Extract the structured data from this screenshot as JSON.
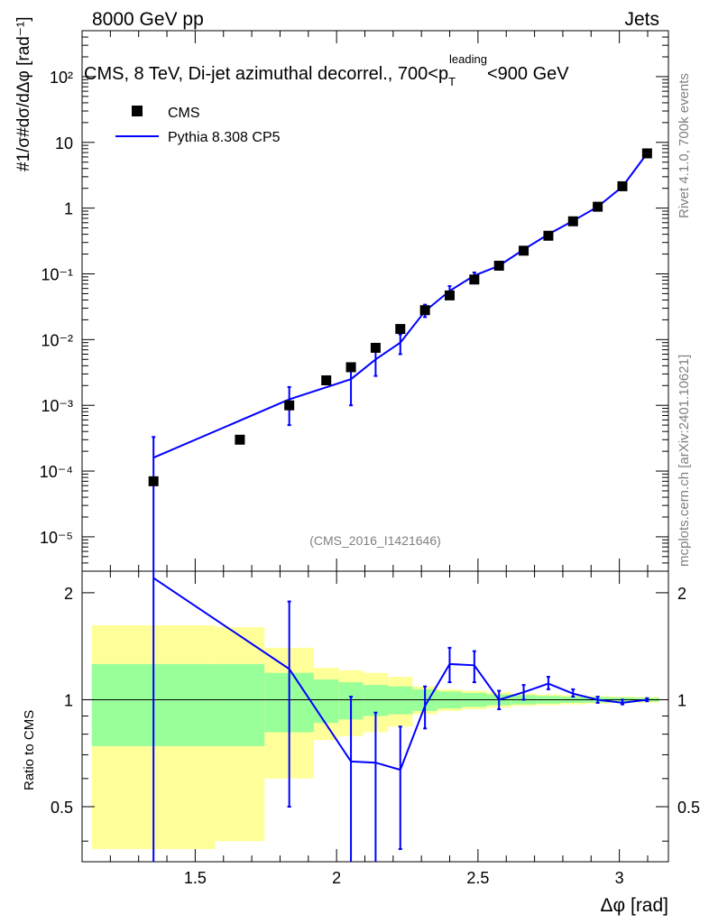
{
  "header": {
    "left": "8000 GeV pp",
    "right": "Jets"
  },
  "title": {
    "prefix": "CMS, 8 TeV, Di-jet azimuthal decorrel., 700<p",
    "sup": "leading",
    "sub": "T",
    "suffix": "<900 GeV"
  },
  "side": {
    "rivet": "Rivet 4.1.0,  700k events",
    "mcplots": "mcplots.cern.ch [arXiv:2401.10621]"
  },
  "watermark": "(CMS_2016_I1421646)",
  "legend": {
    "data_label": "CMS",
    "mc_label": "Pythia 8.308 CP5"
  },
  "axes": {
    "ylabel_top": "#1/σ#dσ/dΔφ [rad⁻¹]",
    "ylabel_ratio": "Ratio to CMS",
    "xlabel": "Δφ [rad]",
    "x_ticks": [
      "1.5",
      "2",
      "2.5",
      "3"
    ],
    "y_ticks_top": [
      "10⁻⁵",
      "10⁻⁴",
      "10⁻³",
      "10⁻²",
      "10⁻¹",
      "1",
      "10",
      "10²"
    ],
    "y_ticks_ratio": [
      "0.5",
      "1",
      "2"
    ]
  },
  "colors": {
    "mc": "#0000ff",
    "data": "#000000",
    "band_1sigma": "#99ff99",
    "band_2sigma": "#ffff99"
  },
  "chart_data": {
    "type": "scatter",
    "xlim": [
      1.1,
      3.1734
    ],
    "ylim_top": [
      3e-06,
      500
    ],
    "ylim_ratio": [
      0.35,
      2.3
    ],
    "x_edges": [
      1.1344,
      1.5708,
      1.7453,
      1.9199,
      2.0071,
      2.0944,
      2.1817,
      2.2689,
      2.3562,
      2.4435,
      2.5307,
      2.618,
      2.7053,
      2.7925,
      2.8798,
      2.9671,
      3.0543,
      3.1416
    ],
    "data": {
      "x": [
        1.3526,
        1.658,
        1.8326,
        1.9635,
        2.0508,
        2.138,
        2.2253,
        2.3126,
        2.3998,
        2.4871,
        2.5744,
        2.6616,
        2.7489,
        2.8362,
        2.9234,
        3.0107,
        3.098
      ],
      "y": [
        7e-05,
        0.0003,
        0.001,
        0.0024,
        0.0038,
        0.0075,
        0.0145,
        0.028,
        0.047,
        0.082,
        0.133,
        0.225,
        0.38,
        0.63,
        1.05,
        2.15,
        6.8
      ],
      "rel_err_1sigma": [
        0.26,
        0.26,
        0.19,
        0.14,
        0.12,
        0.1,
        0.09,
        0.07,
        0.055,
        0.045,
        0.035,
        0.03,
        0.025,
        0.02,
        0.018,
        0.015,
        0.012
      ],
      "rel_err_2sigma": [
        0.62,
        0.6,
        0.4,
        0.23,
        0.21,
        0.19,
        0.16,
        0.09,
        0.07,
        0.06,
        0.05,
        0.04,
        0.035,
        0.03,
        0.025,
        0.02,
        0.018
      ]
    },
    "mc": {
      "x": [
        1.3526,
        1.8326,
        2.0508,
        2.138,
        2.2253,
        2.3126,
        2.3998,
        2.4871,
        2.5744,
        2.6616,
        2.7489,
        2.8362,
        2.9234,
        3.0107,
        3.098
      ],
      "y": [
        0.00016,
        0.00123,
        0.0025,
        0.005,
        0.009,
        0.027,
        0.055,
        0.094,
        0.133,
        0.235,
        0.4,
        0.64,
        1.05,
        2.12,
        6.8
      ],
      "ylo": [
        1e-07,
        0.0005,
        0.001,
        0.0028,
        0.006,
        0.022,
        0.045,
        0.08,
        0.12,
        0.21,
        0.36,
        0.6,
        1.0,
        2.05,
        6.6
      ],
      "yhi": [
        0.00033,
        0.0019,
        0.0042,
        0.007,
        0.012,
        0.034,
        0.065,
        0.105,
        0.145,
        0.255,
        0.43,
        0.68,
        1.1,
        2.2,
        7.0
      ]
    },
    "ratio": {
      "x": [
        1.3526,
        1.8326,
        2.0508,
        2.138,
        2.2253,
        2.3126,
        2.3998,
        2.4871,
        2.5744,
        2.6616,
        2.7489,
        2.8362,
        2.9234,
        3.0107,
        3.098
      ],
      "y": [
        2.2,
        1.22,
        0.67,
        0.665,
        0.635,
        0.96,
        1.26,
        1.25,
        1.0,
        1.05,
        1.11,
        1.04,
        1.0,
        0.98,
        1.0
      ],
      "ylo": [
        0.05,
        0.5,
        0.05,
        0.05,
        0.38,
        0.83,
        1.12,
        1.12,
        0.94,
        1.0,
        1.07,
        1.02,
        0.98,
        0.97,
        0.99
      ],
      "yhi": [
        3.0,
        1.89,
        1.02,
        0.92,
        0.84,
        1.09,
        1.4,
        1.37,
        1.06,
        1.1,
        1.16,
        1.07,
        1.02,
        1.0,
        1.01
      ]
    }
  }
}
